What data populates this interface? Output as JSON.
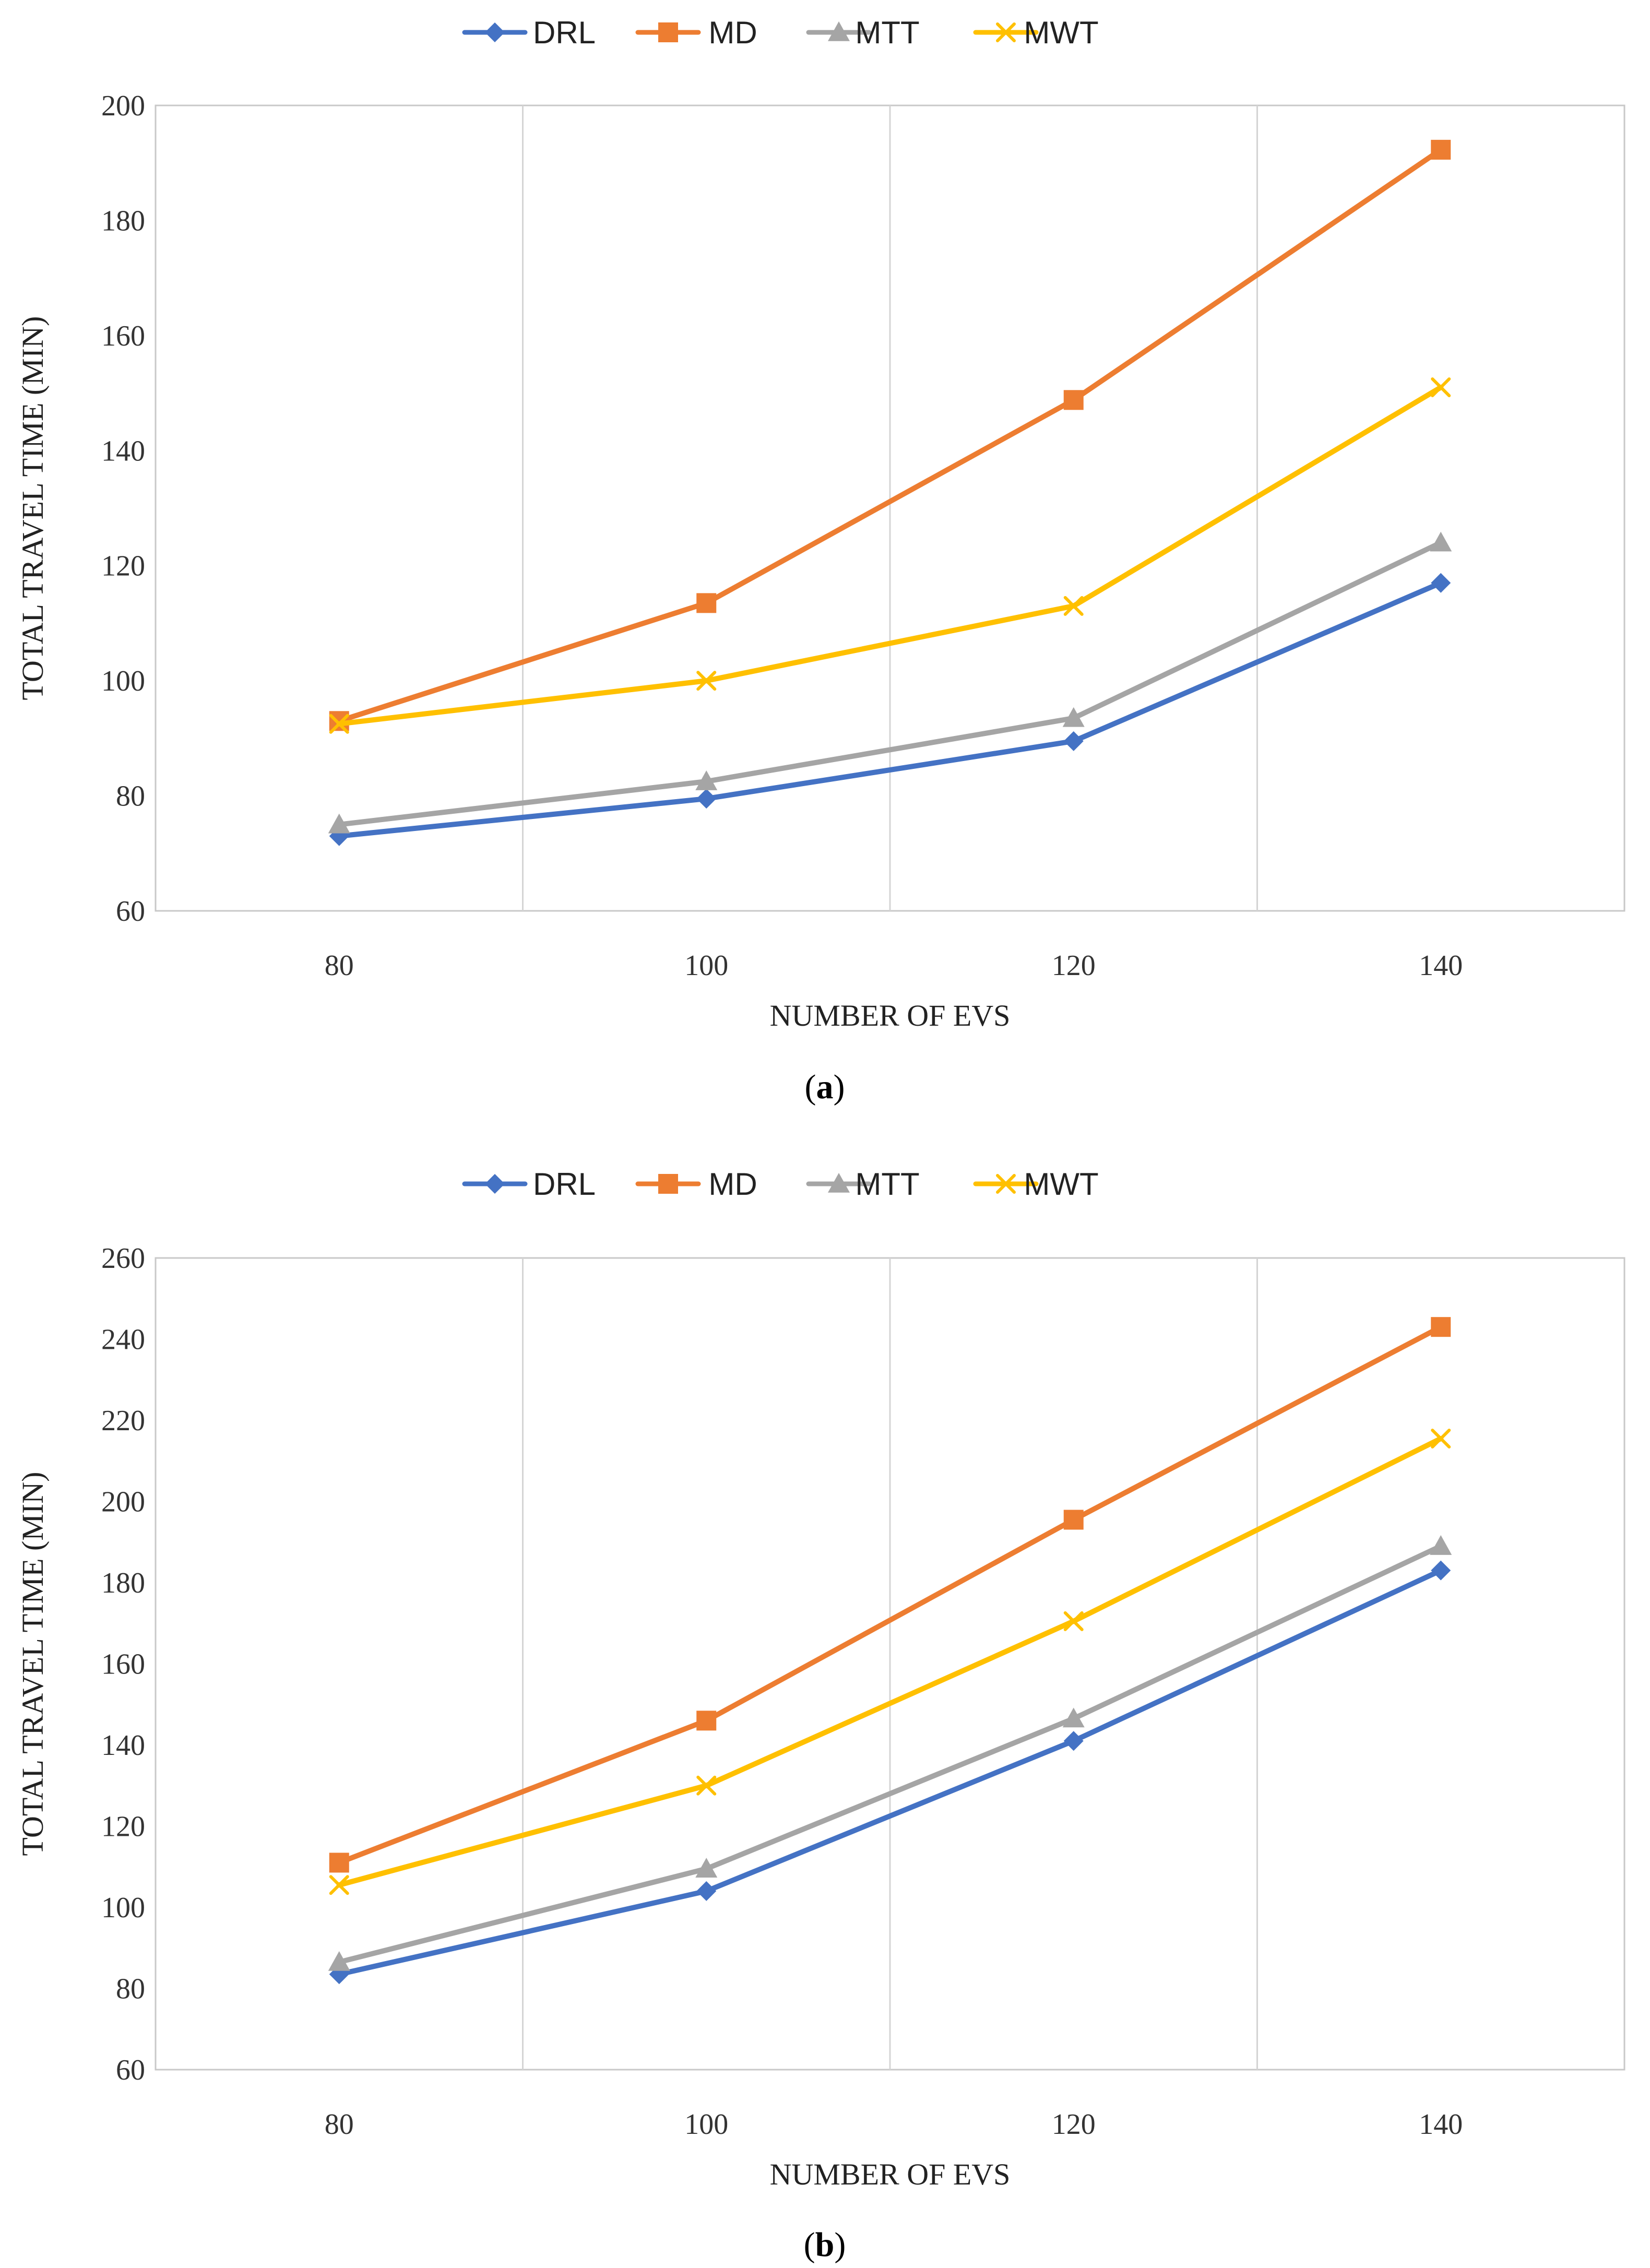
{
  "figure": {
    "panels": [
      "(a)",
      "(b)"
    ],
    "panel_labels": [
      {
        "open": "(",
        "letter": "a",
        "close": ")"
      },
      {
        "open": "(",
        "letter": "b",
        "close": ")"
      }
    ]
  },
  "chart_data": [
    {
      "type": "line",
      "panel": "a",
      "title": "",
      "xlabel": "NUMBER OF EVS",
      "ylabel": "TOTAL TRAVEL TIME (MIN)",
      "x": [
        80,
        100,
        120,
        140
      ],
      "xlim": [
        70,
        150
      ],
      "xticks": [
        80,
        100,
        120,
        140
      ],
      "ylim": [
        60,
        200
      ],
      "yticks": [
        60,
        80,
        100,
        120,
        140,
        160,
        180,
        200
      ],
      "vgrid": [
        90,
        110,
        130
      ],
      "legend_position": "top",
      "series": [
        {
          "name": "DRL",
          "marker": "diamond",
          "color": "#4472C4",
          "values": [
            73,
            79.5,
            89.5,
            117
          ]
        },
        {
          "name": "MD",
          "marker": "square",
          "color": "#ED7D31",
          "values": [
            93,
            113.5,
            148.8,
            192.3
          ]
        },
        {
          "name": "MTT",
          "marker": "triangle",
          "color": "#A5A5A5",
          "values": [
            75,
            82.5,
            93.5,
            124
          ]
        },
        {
          "name": "MWT",
          "marker": "x",
          "color": "#FFC000",
          "values": [
            92.5,
            100,
            113,
            151
          ]
        }
      ]
    },
    {
      "type": "line",
      "panel": "b",
      "title": "",
      "xlabel": "NUMBER OF EVS",
      "ylabel": "TOTAL TRAVEL TIME (MIN)",
      "x": [
        80,
        100,
        120,
        140
      ],
      "xlim": [
        70,
        150
      ],
      "xticks": [
        80,
        100,
        120,
        140
      ],
      "ylim": [
        60,
        260
      ],
      "yticks": [
        60,
        80,
        100,
        120,
        140,
        160,
        180,
        200,
        220,
        240,
        260
      ],
      "vgrid": [
        90,
        110,
        130
      ],
      "legend_position": "top",
      "series": [
        {
          "name": "DRL",
          "marker": "diamond",
          "color": "#4472C4",
          "values": [
            83.5,
            104,
            141,
            183
          ]
        },
        {
          "name": "MD",
          "marker": "square",
          "color": "#ED7D31",
          "values": [
            111,
            146,
            195.5,
            243
          ]
        },
        {
          "name": "MTT",
          "marker": "triangle",
          "color": "#A5A5A5",
          "values": [
            86.5,
            109.5,
            146.5,
            189
          ]
        },
        {
          "name": "MWT",
          "marker": "x",
          "color": "#FFC000",
          "values": [
            105.5,
            130,
            170.5,
            215.5
          ]
        }
      ]
    }
  ]
}
